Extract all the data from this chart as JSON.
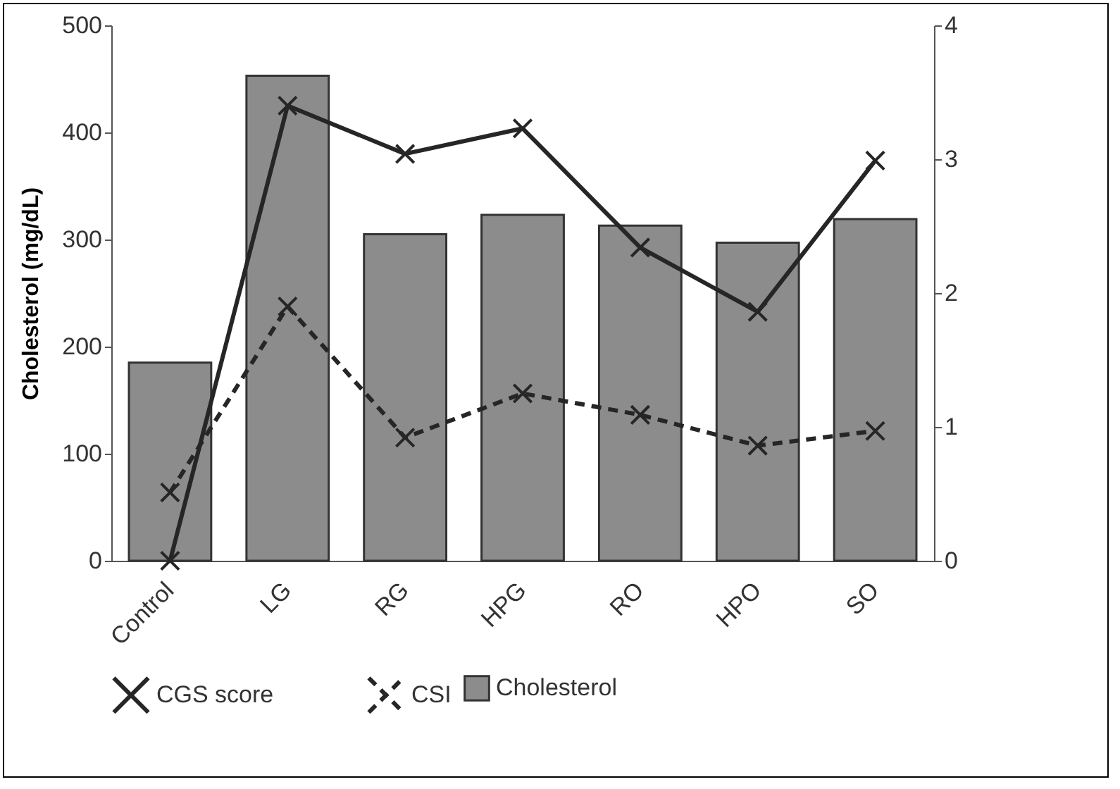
{
  "chart_data": {
    "type": "bar",
    "ylabel": "Cholesterol (mg/dL)",
    "categories": [
      "Control",
      "LG",
      "RG",
      "HPG",
      "RO",
      "HPO",
      "SO"
    ],
    "series": [
      {
        "name": "Cholesterol",
        "color": "#8c8c8c",
        "values": [
          185,
          453,
          305,
          323,
          313,
          297,
          319
        ]
      },
      {
        "name": "CGS score",
        "type": "line",
        "axis": "y2",
        "color": "#262626",
        "line_style": "solid",
        "marker": "cross",
        "values": [
          0,
          3.4,
          3.04,
          3.23,
          2.34,
          1.86,
          2.99
        ]
      },
      {
        "name": "CSI",
        "type": "line",
        "axis": "y2",
        "color": "#262626",
        "line_style": "dashed",
        "marker": "cross",
        "values": [
          0.51,
          1.9,
          0.92,
          1.25,
          1.09,
          0.86,
          0.97
        ]
      }
    ],
    "ylim": [
      0,
      500
    ],
    "yticks": [
      0,
      100,
      200,
      300,
      400,
      500
    ],
    "y2lim": [
      0,
      4
    ],
    "y2ticks": [
      0,
      1,
      2,
      3,
      4
    ],
    "grid": false,
    "legend": "bottom"
  }
}
